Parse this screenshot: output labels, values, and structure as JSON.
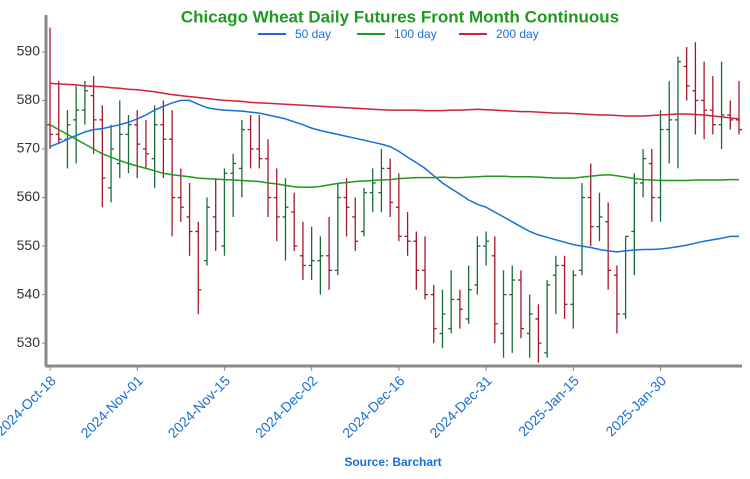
{
  "chart_data": {
    "type": "ohlc",
    "title": "Chicago Wheat Daily Futures Front Month Continuous",
    "source": "Source: Barchart",
    "categories": [
      "2024-Oct-18",
      null,
      null,
      null,
      null,
      null,
      null,
      null,
      null,
      null,
      "2024-Nov-01",
      null,
      null,
      null,
      null,
      null,
      null,
      null,
      null,
      null,
      "2024-Nov-15",
      null,
      null,
      null,
      null,
      null,
      null,
      null,
      null,
      null,
      "2024-Dec-02",
      null,
      null,
      null,
      null,
      null,
      null,
      null,
      null,
      null,
      "2024-Dec-16",
      null,
      null,
      null,
      null,
      null,
      null,
      null,
      null,
      null,
      "2024-Dec-31",
      null,
      null,
      null,
      null,
      null,
      null,
      null,
      null,
      null,
      "2025-Jan-15",
      null,
      null,
      null,
      null,
      null,
      null,
      null,
      null,
      null,
      "2025-Jan-30",
      null,
      null,
      null,
      null,
      null,
      null,
      null,
      null,
      null
    ],
    "open": [
      575,
      573,
      572,
      576,
      578,
      581,
      576,
      562,
      567,
      573,
      575,
      570,
      568,
      575,
      572,
      560,
      556,
      553,
      547,
      556,
      550,
      565,
      566,
      574,
      570,
      568,
      560,
      556,
      557,
      548,
      546,
      547,
      548,
      545,
      560,
      556,
      553,
      561,
      561,
      566,
      558,
      552,
      551,
      545,
      540,
      532,
      533,
      539,
      535,
      542,
      550,
      548,
      532,
      540,
      543,
      532,
      535,
      528,
      544,
      546,
      538,
      545,
      560,
      554,
      555,
      544,
      536,
      553,
      563,
      567,
      560,
      574,
      576,
      587,
      582,
      580,
      578,
      575,
      577,
      576
    ],
    "high": [
      595,
      584,
      578,
      583,
      584,
      585,
      579,
      575,
      580,
      577,
      578,
      576,
      579,
      580,
      578,
      566,
      563,
      555,
      560,
      564,
      566,
      569,
      576,
      577,
      577,
      572,
      566,
      564,
      561,
      555,
      554,
      552,
      556,
      563,
      564,
      560,
      562,
      566,
      570,
      568,
      565,
      557,
      553,
      552,
      542,
      541,
      545,
      541,
      546,
      552,
      553,
      552,
      545,
      546,
      545,
      540,
      538,
      543,
      548,
      548,
      545,
      563,
      567,
      561,
      559,
      546,
      552,
      565,
      570,
      570,
      578,
      584,
      589,
      591,
      592,
      588,
      585,
      588,
      580,
      584
    ],
    "low": [
      570,
      571,
      566,
      567,
      575,
      569,
      558,
      559,
      564,
      565,
      564,
      566,
      562,
      564,
      552,
      555,
      548,
      536,
      546,
      549,
      548,
      556,
      560,
      566,
      566,
      556,
      551,
      547,
      549,
      543,
      543,
      540,
      541,
      544,
      552,
      549,
      552,
      557,
      557,
      556,
      551,
      548,
      541,
      539,
      530,
      529,
      532,
      533,
      534,
      540,
      546,
      530,
      527,
      528,
      531,
      527,
      526,
      527,
      536,
      535,
      533,
      544,
      550,
      551,
      541,
      532,
      535,
      544,
      560,
      555,
      555,
      567,
      566,
      580,
      573,
      572,
      573,
      570,
      574,
      573
    ],
    "close": [
      573,
      572,
      575,
      578,
      582,
      576,
      564,
      570,
      573,
      575,
      571,
      569,
      575,
      572,
      560,
      558,
      553,
      541,
      558,
      553,
      565,
      567,
      574,
      570,
      568,
      560,
      556,
      558,
      550,
      546,
      547,
      548,
      545,
      560,
      558,
      551,
      561,
      563,
      566,
      559,
      552,
      551,
      545,
      540,
      533,
      536,
      539,
      537,
      541,
      550,
      551,
      534,
      540,
      543,
      533,
      536,
      530,
      542,
      546,
      538,
      544,
      560,
      554,
      556,
      545,
      536,
      552,
      563,
      568,
      560,
      574,
      576,
      588,
      583,
      580,
      578,
      575,
      577,
      576,
      574
    ],
    "up_color": "#1b6b3a",
    "down_color": "#a3182b",
    "series": [
      {
        "name": "50 day",
        "color": "#1a6fd4",
        "values": [
          570.5,
          571.2,
          572,
          572.8,
          573.5,
          574,
          574.2,
          574.6,
          575,
          575.5,
          576.2,
          577,
          578,
          578.8,
          579.5,
          580,
          580,
          579.2,
          578.5,
          578.2,
          578,
          577.9,
          577.8,
          577.6,
          577.4,
          577,
          576.6,
          576.2,
          575.6,
          575,
          574.3,
          573.8,
          573.4,
          573,
          572.6,
          572.2,
          571.8,
          571.4,
          571,
          570.5,
          569.5,
          568.3,
          567.2,
          566,
          564.5,
          563,
          561.8,
          560.7,
          559.5,
          558.6,
          558,
          557,
          556,
          555,
          554,
          553,
          552.3,
          551.8,
          551.3,
          550.8,
          550.3,
          550,
          549.7,
          549.3,
          549,
          548.8,
          549,
          549.2,
          549.3,
          549.3,
          549.4,
          549.6,
          549.9,
          550.2,
          550.6,
          551,
          551.3,
          551.6,
          552,
          552
        ]
      },
      {
        "name": "100 day",
        "color": "#1f9a1f",
        "values": [
          575,
          574,
          573,
          572,
          571,
          570,
          569,
          568.3,
          567.6,
          567,
          566.5,
          566,
          565.5,
          565,
          564.7,
          564.5,
          564.3,
          564,
          563.9,
          563.8,
          563.7,
          563.6,
          563.5,
          563.4,
          563.3,
          563,
          562.8,
          562.5,
          562.2,
          562.1,
          562.1,
          562.3,
          562.6,
          562.9,
          563.1,
          563.3,
          563.4,
          563.5,
          563.6,
          563.7,
          563.9,
          564,
          564.1,
          564.1,
          564.1,
          564.2,
          564.1,
          564.1,
          564.2,
          564.3,
          564.4,
          564.4,
          564.4,
          564.3,
          564.3,
          564.3,
          564.2,
          564.1,
          564,
          564,
          564,
          564.2,
          564.4,
          564.6,
          564.7,
          564.5,
          564.2,
          563.9,
          563.7,
          563.6,
          563.5,
          563.5,
          563.5,
          563.5,
          563.6,
          563.6,
          563.6,
          563.6,
          563.7,
          563.7
        ]
      },
      {
        "name": "200 day",
        "color": "#d0223f",
        "values": [
          583.5,
          583.4,
          583.3,
          583.2,
          583,
          582.9,
          582.8,
          582.6,
          582.5,
          582.3,
          582.2,
          582,
          581.8,
          581.5,
          581.2,
          581,
          580.8,
          580.6,
          580.4,
          580.2,
          580,
          579.9,
          579.8,
          579.6,
          579.5,
          579.4,
          579.3,
          579.2,
          579.1,
          579,
          578.9,
          578.8,
          578.7,
          578.6,
          578.5,
          578.4,
          578.3,
          578.2,
          578.1,
          578,
          578,
          578,
          578,
          577.9,
          577.9,
          577.9,
          578,
          578,
          578.1,
          578.2,
          578.1,
          578,
          577.9,
          577.8,
          577.7,
          577.7,
          577.6,
          577.5,
          577.4,
          577.4,
          577.3,
          577.2,
          577.1,
          577,
          577,
          576.9,
          576.8,
          576.8,
          576.8,
          576.9,
          577,
          577.1,
          577.2,
          577.2,
          577.1,
          577,
          576.8,
          576.6,
          576.4,
          576.2
        ]
      }
    ],
    "ylim": [
      525.5,
      597.6
    ],
    "yticks": [
      530,
      540,
      550,
      560,
      570,
      580,
      590
    ],
    "legend_position": "top"
  }
}
